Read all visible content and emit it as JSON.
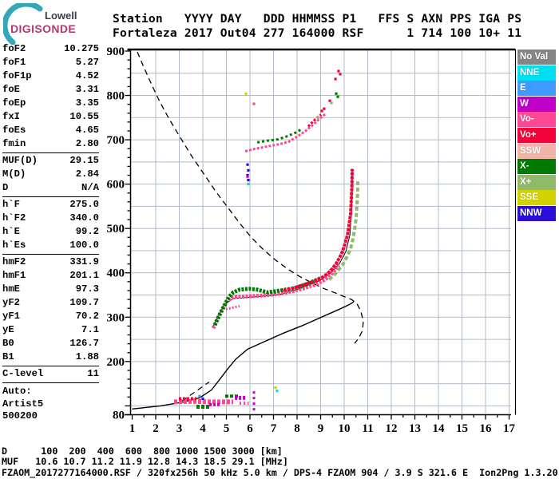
{
  "logo": {
    "line1": "Lowell",
    "line2": "DIGISONDE",
    "arc_color": "#35a8b8"
  },
  "header": {
    "line1": "Station   YYYY DAY   DDD HHMMSS P1   FFS S AXN PPS IGA PS",
    "line2": "Fortaleza 2017 Out04 277 164000 RSF      1 714 100 10+ 11"
  },
  "params": {
    "groups": [
      {
        "rows": [
          [
            "foF2",
            "10.275"
          ],
          [
            "foF1",
            "5.27"
          ],
          [
            "foF1p",
            "4.52"
          ],
          [
            "foE",
            "3.31"
          ],
          [
            "foEp",
            "3.35"
          ],
          [
            "fxI",
            "10.55"
          ],
          [
            "foEs",
            "4.65"
          ],
          [
            "fmin",
            "2.80"
          ]
        ]
      },
      {
        "rows": [
          [
            "MUF(D)",
            "29.15"
          ],
          [
            "M(D)",
            "2.84"
          ],
          [
            "D",
            "N/A"
          ]
        ]
      },
      {
        "rows": [
          [
            "h`F",
            "275.0"
          ],
          [
            "h`F2",
            "340.0"
          ],
          [
            "h`E",
            "99.2"
          ],
          [
            "h`Es",
            "100.0"
          ]
        ]
      },
      {
        "rows": [
          [
            "hmF2",
            "331.9"
          ],
          [
            "hmF1",
            "201.1"
          ],
          [
            "hmE",
            "97.3"
          ],
          [
            "yF2",
            "109.7"
          ],
          [
            "yF1",
            "70.2"
          ],
          [
            "yE",
            "7.1"
          ],
          [
            "B0",
            "126.7"
          ],
          [
            "B1",
            "1.88"
          ]
        ]
      },
      {
        "rows": [
          [
            "C-level",
            "11"
          ]
        ]
      }
    ],
    "auto_lines": [
      "Auto:",
      "Artist5",
      "500200"
    ]
  },
  "colors": {
    "No Val": "#858585",
    "NNE": "#00dff0",
    "E": "#3e9aff",
    "W": "#c000c8",
    "Vo-": "#ff4894",
    "Vo+": "#f40238",
    "SSW": "#f1b4ab",
    "X-": "#007a00",
    "X+": "#8fbb68",
    "SSE": "#d2d200",
    "NNW": "#2a0ed8",
    "grid": "#b2bbc9",
    "axis": "#000000"
  },
  "legend": {
    "items": [
      "No Val",
      "NNE",
      "E",
      "W",
      "Vo-",
      "Vo+",
      "SSW",
      "X-",
      "X+",
      "SSE",
      "NNW"
    ]
  },
  "chart_data": {
    "type": "scatter",
    "title": "",
    "x_axis": {
      "range": [
        1,
        17
      ],
      "tick_labels": [
        1,
        2,
        3,
        4,
        5,
        6,
        7,
        8,
        9,
        10,
        11,
        12,
        13,
        14,
        15,
        16,
        17
      ],
      "minor_step": 0.5,
      "units_shown_in_footer": "[MHz]"
    },
    "y_axis": {
      "range": [
        80,
        900
      ],
      "tick_labels": [
        900,
        800,
        700,
        600,
        500,
        400,
        300,
        200,
        80
      ],
      "grid_step_km": 50,
      "minor_step_km": 20,
      "units_shown_in_footer": "[km]"
    },
    "grid": true,
    "curves": [
      {
        "name": "true-height-profile",
        "style": "solid",
        "width": 1.4,
        "points": [
          [
            1.0,
            93
          ],
          [
            2.2,
            100
          ],
          [
            3.2,
            109
          ],
          [
            3.86,
            118
          ],
          [
            4.37,
            136
          ],
          [
            4.71,
            159
          ],
          [
            5.05,
            183
          ],
          [
            5.39,
            205
          ],
          [
            5.9,
            228
          ],
          [
            6.58,
            244
          ],
          [
            7.42,
            264
          ],
          [
            8.27,
            282
          ],
          [
            9.12,
            302
          ],
          [
            9.8,
            318
          ],
          [
            10.24,
            329
          ],
          [
            10.41,
            335
          ]
        ]
      },
      {
        "name": "muf-transmission-curve",
        "style": "dashed",
        "width": 1.3,
        "points": [
          [
            1.22,
            898
          ],
          [
            1.49,
            864
          ],
          [
            1.83,
            824
          ],
          [
            2.17,
            786
          ],
          [
            2.58,
            746
          ],
          [
            3.02,
            707
          ],
          [
            3.53,
            663
          ],
          [
            4.03,
            624
          ],
          [
            4.54,
            584
          ],
          [
            5.05,
            548
          ],
          [
            5.56,
            512
          ],
          [
            6.07,
            479
          ],
          [
            6.58,
            452
          ],
          [
            7.08,
            429
          ],
          [
            7.59,
            409
          ],
          [
            8.1,
            392
          ],
          [
            8.61,
            378
          ],
          [
            9.12,
            365
          ],
          [
            9.56,
            356
          ],
          [
            9.97,
            347
          ],
          [
            10.31,
            340
          ],
          [
            10.54,
            331
          ],
          [
            10.71,
            313
          ],
          [
            10.81,
            291
          ],
          [
            10.78,
            270
          ],
          [
            10.61,
            252
          ],
          [
            10.44,
            241
          ]
        ]
      },
      {
        "name": "trace-fit-line",
        "style": "solid",
        "width": 1.0,
        "points": [
          [
            4.44,
            279
          ],
          [
            4.92,
            329
          ],
          [
            5.29,
            342
          ],
          [
            6.24,
            346
          ],
          [
            7.25,
            351
          ],
          [
            8.1,
            364
          ],
          [
            8.95,
            382
          ],
          [
            9.46,
            401
          ],
          [
            9.8,
            421
          ],
          [
            10.07,
            448
          ],
          [
            10.24,
            485
          ],
          [
            10.31,
            539
          ],
          [
            10.34,
            593
          ],
          [
            10.34,
            635
          ]
        ]
      },
      {
        "name": "es-dashed-extension",
        "style": "dashed",
        "width": 1.2,
        "points": [
          [
            3.12,
            111
          ],
          [
            4.27,
            154
          ]
        ]
      }
    ],
    "traces": [
      {
        "name": "es-band-pink",
        "color": "Vo-",
        "width": 6,
        "dash": "4 2",
        "points": [
          [
            2.78,
            109
          ],
          [
            3.6,
            110
          ],
          [
            4.4,
            109
          ],
          [
            5.29,
            109
          ]
        ]
      },
      {
        "name": "es-band-red",
        "color": "Vo+",
        "width": 4,
        "dash": "3 2",
        "points": [
          [
            2.98,
            116
          ],
          [
            3.73,
            116
          ]
        ]
      },
      {
        "name": "es-band-green-low",
        "color": "X-",
        "width": 5,
        "dash": "4 2",
        "points": [
          [
            3.73,
            98
          ],
          [
            4.34,
            98
          ]
        ]
      },
      {
        "name": "es-band-green-high",
        "color": "X-",
        "width": 4,
        "dash": "4 2",
        "points": [
          [
            4.95,
            122
          ],
          [
            5.56,
            122
          ]
        ]
      },
      {
        "name": "es-band-purple-mid",
        "color": "W",
        "width": 4,
        "dash": "3 2",
        "points": [
          [
            4.27,
            103
          ],
          [
            4.75,
            103
          ]
        ]
      },
      {
        "name": "es-band-purple-right",
        "color": "W",
        "width": 5,
        "dash": "3 2",
        "points": [
          [
            5.36,
            118
          ],
          [
            5.83,
            118
          ]
        ]
      },
      {
        "name": "es-band-pink-right",
        "color": "Vo-",
        "width": 4,
        "dash": "2 3",
        "points": [
          [
            5.56,
            106
          ],
          [
            5.95,
            106
          ]
        ]
      },
      {
        "name": "es-vertical-purple",
        "color": "W",
        "width": 3,
        "dash": "3 4",
        "points": [
          [
            6.17,
            133
          ],
          [
            6.17,
            83
          ]
        ]
      },
      {
        "name": "f-trace-pink",
        "color": "Vo-",
        "width": 5,
        "dash": "3 1.5",
        "points": [
          [
            4.44,
            275
          ],
          [
            4.61,
            295
          ],
          [
            4.78,
            313
          ],
          [
            4.92,
            326
          ],
          [
            5.02,
            336
          ],
          [
            5.22,
            344
          ],
          [
            5.42,
            346
          ],
          [
            5.9,
            347
          ],
          [
            6.58,
            349
          ],
          [
            7.25,
            353
          ],
          [
            7.76,
            358
          ],
          [
            8.27,
            365
          ],
          [
            8.78,
            374
          ],
          [
            9.12,
            383
          ],
          [
            9.36,
            392
          ],
          [
            9.56,
            403
          ],
          [
            9.76,
            418
          ]
        ]
      },
      {
        "name": "f-trace-pink-spread",
        "color": "Vo-",
        "width": 3,
        "dash": "2 2",
        "points": [
          [
            4.98,
            318
          ],
          [
            5.29,
            322
          ],
          [
            5.56,
            325
          ]
        ]
      },
      {
        "name": "f-trace-green",
        "color": "X-",
        "width": 5,
        "dash": "3 1.5",
        "points": [
          [
            4.51,
            282
          ],
          [
            4.68,
            302
          ],
          [
            4.85,
            320
          ],
          [
            4.98,
            333
          ],
          [
            5.12,
            346
          ],
          [
            5.29,
            356
          ],
          [
            5.56,
            362
          ],
          [
            5.97,
            364
          ],
          [
            6.31,
            362
          ],
          [
            6.75,
            356
          ],
          [
            7.25,
            360
          ],
          [
            7.86,
            365
          ],
          [
            8.34,
            373
          ],
          [
            8.75,
            382
          ],
          [
            9.05,
            389
          ]
        ]
      },
      {
        "name": "f-trace-red-asymptote",
        "color": "Vo+",
        "width": 4,
        "dash": "4 1",
        "points": [
          [
            7.42,
            360
          ],
          [
            7.93,
            367
          ],
          [
            8.44,
            376
          ],
          [
            8.78,
            382
          ],
          [
            9.05,
            389
          ],
          [
            9.29,
            398
          ],
          [
            9.49,
            409
          ],
          [
            9.66,
            421
          ],
          [
            9.8,
            434
          ],
          [
            9.93,
            448
          ],
          [
            10.03,
            465
          ],
          [
            10.14,
            485
          ],
          [
            10.2,
            506
          ],
          [
            10.27,
            533
          ],
          [
            10.3,
            566
          ],
          [
            10.33,
            598
          ],
          [
            10.34,
            634
          ]
        ]
      },
      {
        "name": "f-trace-xmode-asymptote",
        "color": "X+",
        "width": 4,
        "dash": "5 3",
        "points": [
          [
            9.36,
            385
          ],
          [
            9.59,
            396
          ],
          [
            9.8,
            409
          ],
          [
            9.97,
            421
          ],
          [
            10.14,
            438
          ],
          [
            10.27,
            454
          ],
          [
            10.37,
            476
          ],
          [
            10.44,
            497
          ],
          [
            10.51,
            524
          ],
          [
            10.54,
            551
          ],
          [
            10.57,
            579
          ],
          [
            10.58,
            606
          ]
        ]
      },
      {
        "name": "f2-echo-pink",
        "color": "Vo-",
        "width": 3,
        "dash": "3 2",
        "points": [
          [
            5.8,
            674
          ],
          [
            6.24,
            680
          ],
          [
            6.75,
            685
          ],
          [
            7.25,
            690
          ],
          [
            7.66,
            696
          ],
          [
            8.0,
            707
          ],
          [
            8.34,
            719
          ],
          [
            8.68,
            734
          ],
          [
            8.95,
            747
          ],
          [
            9.22,
            759
          ]
        ]
      },
      {
        "name": "f2-echo-green",
        "color": "X-",
        "width": 3,
        "dash": "3 3",
        "points": [
          [
            6.31,
            694
          ],
          [
            6.75,
            698
          ],
          [
            7.19,
            701
          ],
          [
            7.53,
            707
          ],
          [
            7.86,
            714
          ],
          [
            8.17,
            723
          ]
        ]
      },
      {
        "name": "f2-echo-red",
        "color": "Vo+",
        "width": 3,
        "dash": "3 2",
        "points": [
          [
            8.47,
            730
          ],
          [
            8.75,
            745
          ],
          [
            9.02,
            757
          ]
        ]
      }
    ],
    "dots": [
      [
        "Vo+",
        9.39,
        788
      ],
      [
        "Vo+",
        9.63,
        837
      ],
      [
        "Vo+",
        9.76,
        855
      ],
      [
        "Vo+",
        9.83,
        848
      ],
      [
        "Vo+",
        9.15,
        770
      ],
      [
        "Vo+",
        9.05,
        765
      ],
      [
        "X-",
        9.66,
        804
      ],
      [
        "X-",
        9.73,
        797
      ],
      [
        "X+",
        9.46,
        783
      ],
      [
        "X+",
        8.88,
        750
      ],
      [
        "Vo-",
        6.17,
        781
      ],
      [
        "SSE",
        5.83,
        804
      ],
      [
        "SSE",
        7.08,
        141
      ],
      [
        "NNE",
        7.15,
        134
      ],
      [
        "NNW",
        5.9,
        644
      ],
      [
        "NNW",
        5.93,
        631
      ],
      [
        "NNW",
        5.9,
        620
      ],
      [
        "NNW",
        5.93,
        609
      ],
      [
        "W",
        5.9,
        617
      ],
      [
        "NNE",
        5.93,
        600
      ],
      [
        "E",
        3.86,
        122
      ],
      [
        "NNW",
        4.0,
        116
      ]
    ]
  },
  "footer": {
    "d_line": "D      100  200  400  600  800 1000 1500 3000 [km]",
    "muf_line": "MUF   10.6 10.7 11.2 11.9 12.8 14.3 18.5 29.1 [MHz]",
    "info_line": "FZAOM_2017277164000.RSF / 320fx256h 50 kHz 5.0 km / DPS-4 FZAOM 904 / 3.9 S 321.6 E  Ion2Png 1.3.20"
  }
}
